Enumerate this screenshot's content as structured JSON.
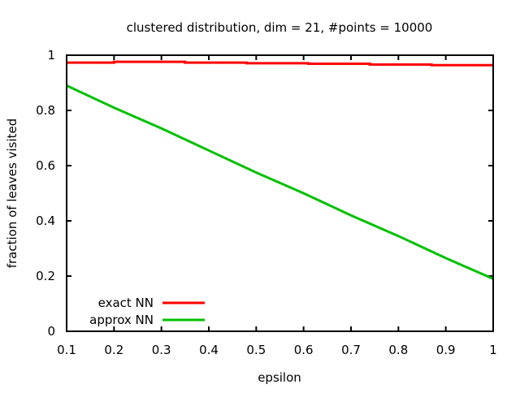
{
  "chart_data": {
    "type": "line",
    "title": "clustered distribution, dim = 21, #points = 10000",
    "xlabel": "epsilon",
    "ylabel": "fraction of leaves visited",
    "xlim": [
      0.1,
      1
    ],
    "ylim": [
      0,
      1
    ],
    "xticks": [
      "0.1",
      "0.2",
      "0.3",
      "0.4",
      "0.5",
      "0.6",
      "0.7",
      "0.8",
      "0.9",
      "1"
    ],
    "xtick_values": [
      0.1,
      0.2,
      0.3,
      0.4,
      0.5,
      0.6,
      0.7,
      0.8,
      0.9,
      1
    ],
    "yticks": [
      "0",
      "0.2",
      "0.4",
      "0.6",
      "0.8",
      "1"
    ],
    "ytick_values": [
      0,
      0.2,
      0.4,
      0.6,
      0.8,
      1
    ],
    "grid": false,
    "legend_position": "bottom-left",
    "series": [
      {
        "name": "exact NN",
        "color": "#ff0000",
        "step": true,
        "x": [
          0.1,
          0.2,
          0.35,
          0.48,
          0.61,
          0.74,
          0.87,
          1.0
        ],
        "y": [
          0.973,
          0.976,
          0.973,
          0.971,
          0.969,
          0.966,
          0.964,
          0.964
        ]
      },
      {
        "name": "approx NN",
        "color": "#00c000",
        "step": false,
        "x": [
          0.1,
          0.2,
          0.3,
          0.4,
          0.5,
          0.6,
          0.7,
          0.8,
          0.9,
          1.0
        ],
        "y": [
          0.89,
          0.81,
          0.735,
          0.655,
          0.575,
          0.5,
          0.42,
          0.345,
          0.265,
          0.19
        ]
      }
    ]
  }
}
